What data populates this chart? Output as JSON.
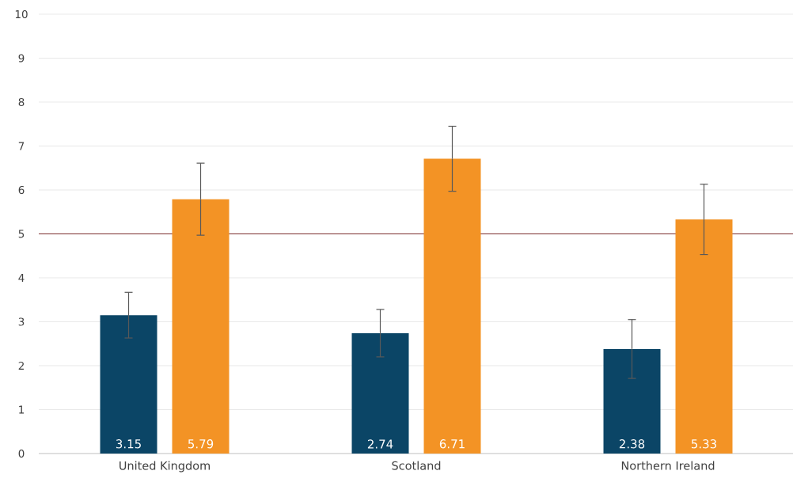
{
  "chart_data": {
    "type": "bar",
    "categories": [
      "United Kingdom",
      "Scotland",
      "Northern Ireland"
    ],
    "series": [
      {
        "color": "#0b4566",
        "values": [
          3.15,
          2.74,
          2.38
        ],
        "errors": [
          0.52,
          0.54,
          0.67
        ]
      },
      {
        "color": "#f39325",
        "values": [
          5.79,
          6.71,
          5.33
        ],
        "errors": [
          0.82,
          0.74,
          0.8
        ]
      }
    ],
    "ylim": [
      0,
      10
    ],
    "yticks": [
      0,
      1,
      2,
      3,
      4,
      5,
      6,
      7,
      8,
      9,
      10
    ],
    "grid": "y",
    "data_labels": true,
    "ref_lines": [
      {
        "axis": "y",
        "value": 5,
        "color": "#7b2c2c"
      }
    ]
  }
}
